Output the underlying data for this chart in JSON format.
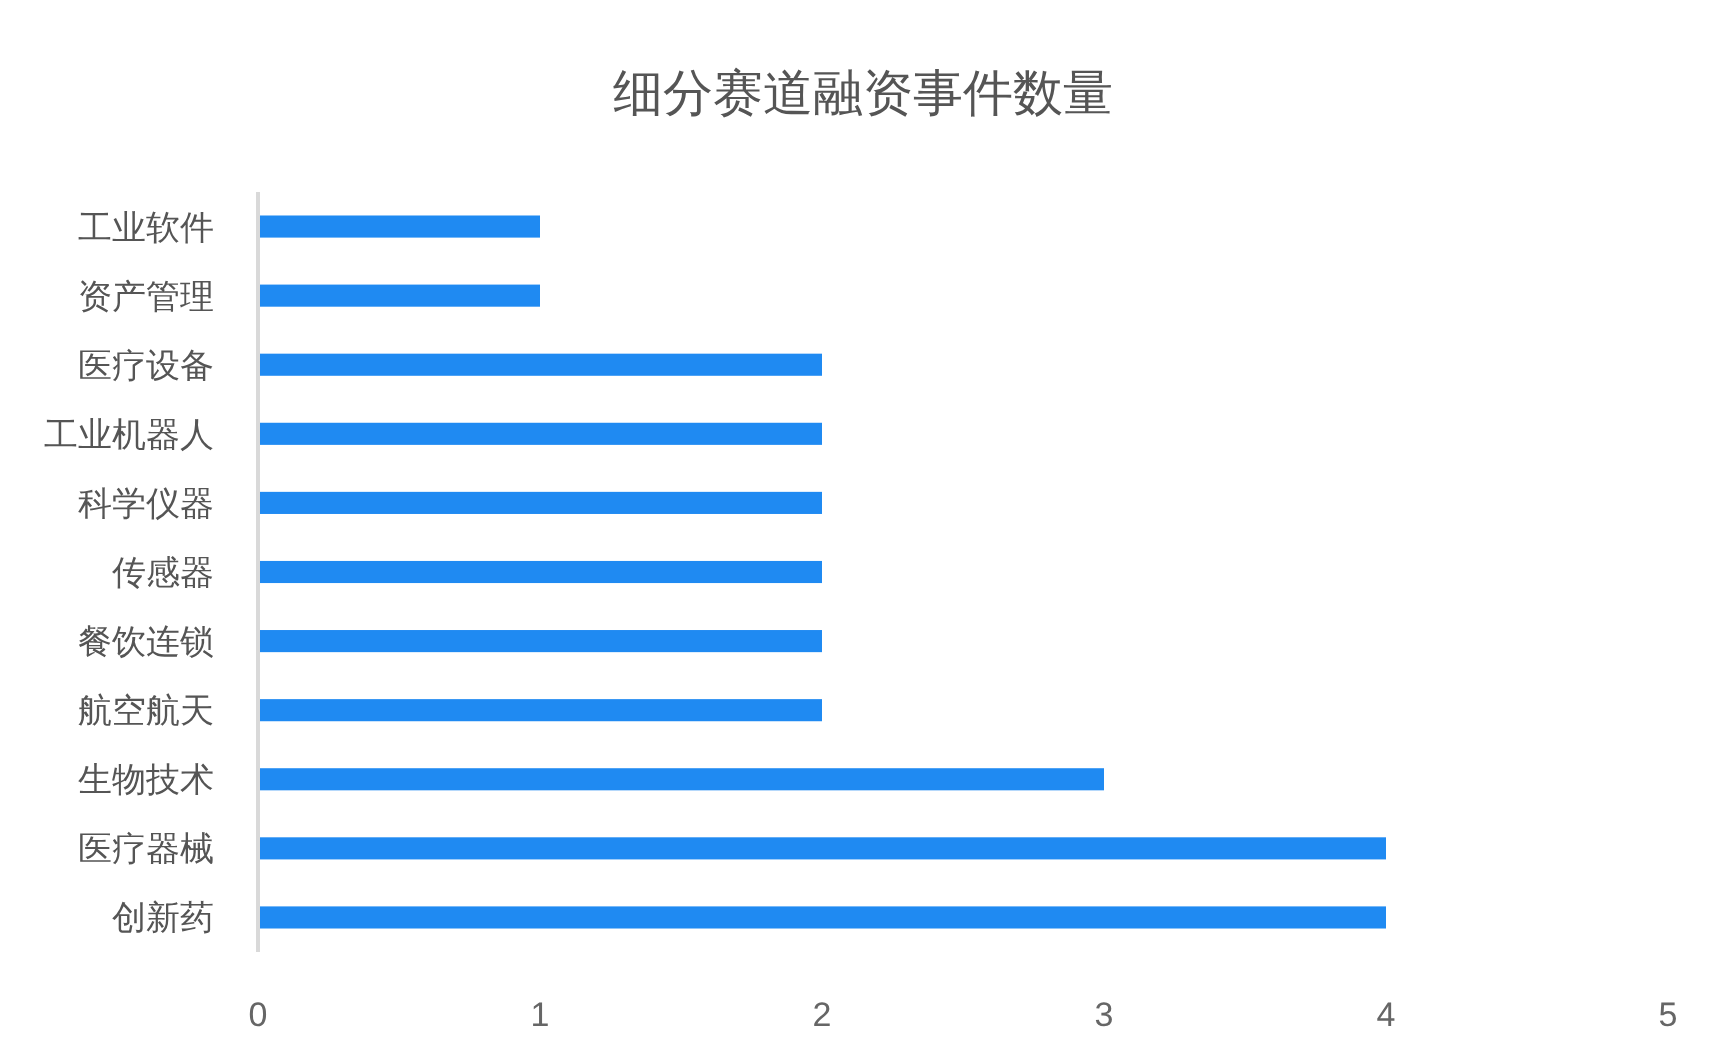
{
  "chart_data": {
    "type": "bar",
    "orientation": "horizontal",
    "title": "细分赛道融资事件数量",
    "categories": [
      "工业软件",
      "资产管理",
      "医疗设备",
      "工业机器人",
      "科学仪器",
      "传感器",
      "餐饮连锁",
      "航空航天",
      "生物技术",
      "医疗器械",
      "创新药"
    ],
    "values": [
      1,
      1,
      2,
      2,
      2,
      2,
      2,
      2,
      3,
      4,
      4
    ],
    "color": "#1f8af2",
    "xlim": [
      0,
      5
    ],
    "xticks": [
      0,
      1,
      2,
      3,
      4,
      5
    ],
    "grid": false
  }
}
